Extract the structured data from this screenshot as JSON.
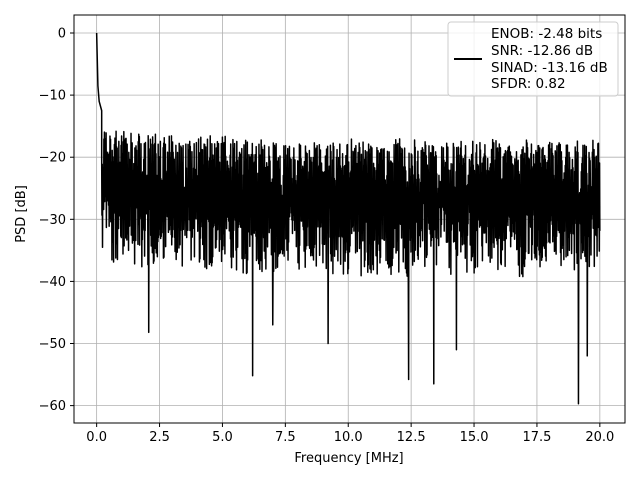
{
  "chart_data": {
    "type": "line",
    "xlabel": "Frequency [MHz]",
    "ylabel": "PSD [dB]",
    "xlim": [
      -0.9,
      21.0
    ],
    "ylim": [
      -62.8,
      2.9
    ],
    "xticks": [
      0.0,
      2.5,
      5.0,
      7.5,
      10.0,
      12.5,
      15.0,
      17.5,
      20.0
    ],
    "xtick_labels": [
      "0.0",
      "2.5",
      "5.0",
      "7.5",
      "10.0",
      "12.5",
      "15.0",
      "17.5",
      "20.0"
    ],
    "yticks": [
      0,
      -10,
      -20,
      -30,
      -40,
      -50,
      -60
    ],
    "ytick_labels": [
      "0",
      "−10",
      "−20",
      "−30",
      "−40",
      "−50",
      "−60"
    ],
    "grid": true,
    "legend_position": "top-right",
    "series": [
      {
        "name": "ENOB: -2.48 bits\nSNR: -12.86 dB\nSINAD: -13.16 dB\nSFDR: 0.82",
        "legend_lines": [
          "ENOB: -2.48 bits",
          "SNR: -12.86 dB",
          "SINAD: -13.16 dB",
          "SFDR: 0.82"
        ],
        "color": "#000000",
        "x_range": [
          0.0,
          20.0
        ],
        "peak_points": [
          {
            "x": 0.0,
            "y": 0.0
          },
          {
            "x": 0.05,
            "y": -8.5
          },
          {
            "x": 0.1,
            "y": -11.0
          },
          {
            "x": 0.2,
            "y": -12.5
          }
        ],
        "typical_upper_envelope": -17.0,
        "typical_lower_envelope": -38.0,
        "deep_notches": [
          {
            "x": 2.07,
            "y": -48.2
          },
          {
            "x": 6.2,
            "y": -55.2
          },
          {
            "x": 7.0,
            "y": -47.0
          },
          {
            "x": 9.2,
            "y": -50.0
          },
          {
            "x": 12.4,
            "y": -55.8
          },
          {
            "x": 13.4,
            "y": -56.5
          },
          {
            "x": 14.3,
            "y": -51.0
          },
          {
            "x": 19.15,
            "y": -59.7
          },
          {
            "x": 19.5,
            "y": -52.0
          }
        ]
      }
    ]
  }
}
